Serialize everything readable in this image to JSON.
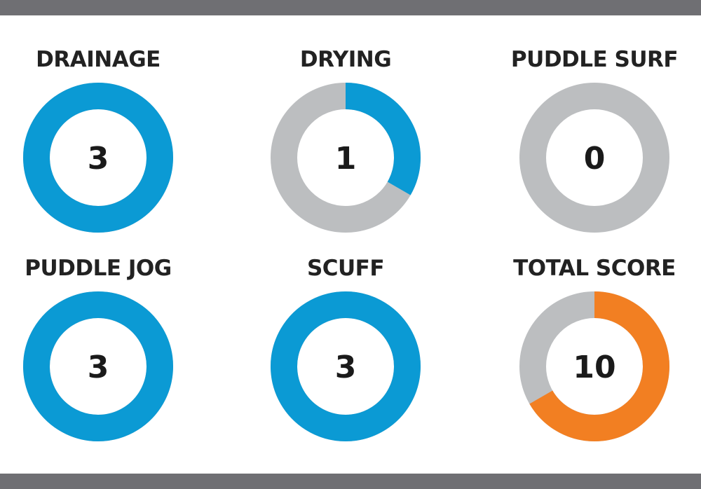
{
  "colors": {
    "blue": "#0b9ad4",
    "gray": "#bcbec0",
    "orange": "#f27f22",
    "frame": "#6f6f73"
  },
  "chart_data": [
    {
      "type": "donut",
      "title": "DRAINAGE",
      "value": 3,
      "max": 3,
      "value_label": "3",
      "fill_color": "blue"
    },
    {
      "type": "donut",
      "title": "DRYING",
      "value": 1,
      "max": 3,
      "value_label": "1",
      "fill_color": "blue"
    },
    {
      "type": "donut",
      "title": "PUDDLE SURF",
      "value": 0,
      "max": 3,
      "value_label": "0",
      "fill_color": "blue"
    },
    {
      "type": "donut",
      "title": "PUDDLE JOG",
      "value": 3,
      "max": 3,
      "value_label": "3",
      "fill_color": "blue"
    },
    {
      "type": "donut",
      "title": "SCUFF",
      "value": 3,
      "max": 3,
      "value_label": "3",
      "fill_color": "blue"
    },
    {
      "type": "donut",
      "title": "TOTAL SCORE",
      "value": 10,
      "max": 15,
      "value_label": "10",
      "fill_color": "orange"
    }
  ]
}
